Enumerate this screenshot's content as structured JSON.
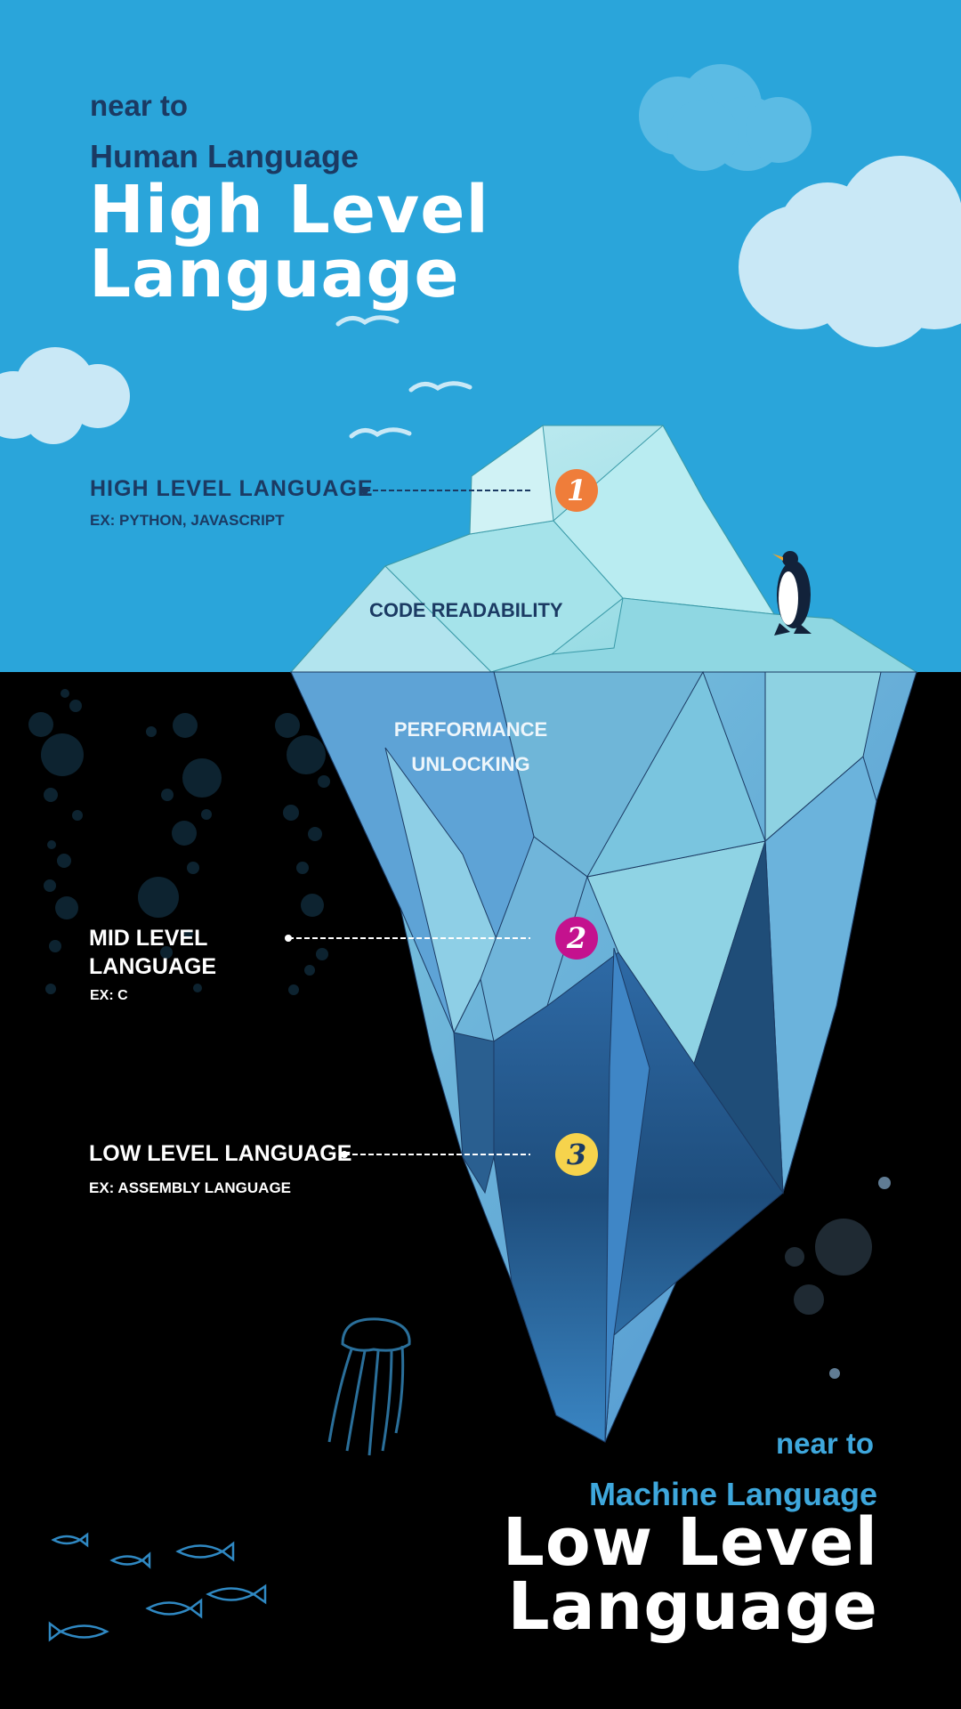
{
  "top": {
    "near_to": "near to",
    "subtitle": "Human Language",
    "title_line1": "High Level",
    "title_line2": "Language"
  },
  "levels": [
    {
      "number": "1",
      "label": "HIGH LEVEL LANGUAGE",
      "example": "EX: PYTHON, JAVASCRIPT",
      "color": "#ef7d3a"
    },
    {
      "number": "2",
      "label_line1": "MID LEVEL",
      "label_line2": "LANGUAGE",
      "example": "EX: C",
      "color": "#c4128e"
    },
    {
      "number": "3",
      "label": "LOW LEVEL LANGUAGE",
      "example": "EX: ASSEMBLY LANGUAGE",
      "color": "#f6d34c"
    }
  ],
  "iceberg": {
    "above_label": "CODE READABILITY",
    "below_line1": "PERFORMANCE",
    "below_line2": "UNLOCKING"
  },
  "bottom": {
    "near_to": "near to",
    "subtitle": "Machine Language",
    "title_line1": "Low Level",
    "title_line2": "Language"
  },
  "colors": {
    "sky": "#2aa5da",
    "ocean": "#000000",
    "dark_text": "#1b3a63",
    "accent_blue": "#3ea7dc"
  },
  "icons": [
    "cloud-icon",
    "bird-icon",
    "penguin-icon",
    "bubble-icon",
    "jellyfish-icon",
    "fish-icon"
  ]
}
